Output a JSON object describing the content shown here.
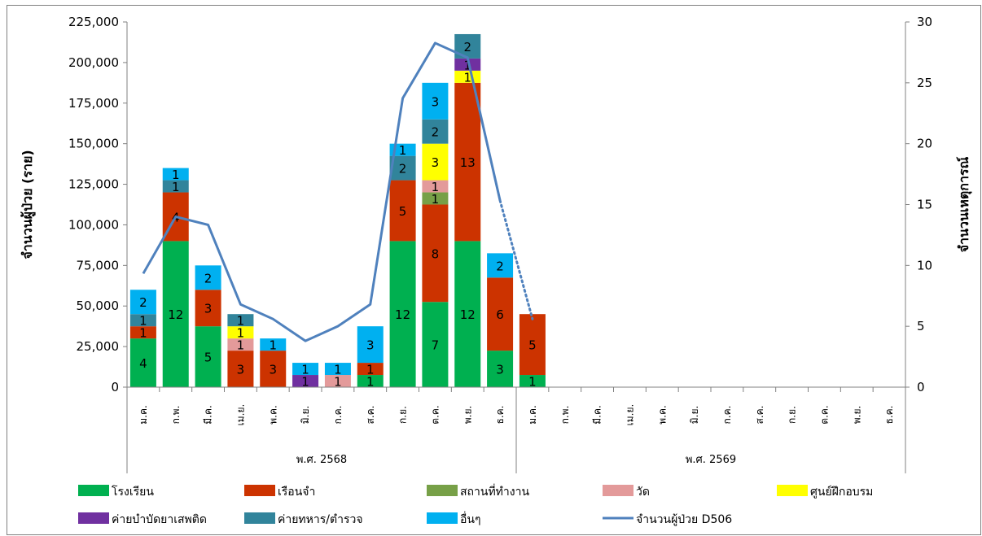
{
  "chart_data": {
    "type": "bar",
    "stacked": true,
    "y_left": {
      "title": "จำนวนผู้ป่วย (ราย)",
      "range": [
        0,
        225000
      ],
      "step": 25000,
      "tick_labels": [
        "0",
        "25,000",
        "50,000",
        "75,000",
        "100,000",
        "125,000",
        "150,000",
        "175,000",
        "200,000",
        "225,000"
      ]
    },
    "y_right": {
      "title": "จำนวนเหตุการณ์",
      "range": [
        0,
        30
      ],
      "step": 5,
      "tick_labels": [
        "0",
        "5",
        "10",
        "15",
        "20",
        "25",
        "30"
      ]
    },
    "groups": [
      {
        "label": "พ.ศ. 2568",
        "months": [
          "ม.ค.",
          "ก.พ.",
          "มี.ค.",
          "เม.ย.",
          "พ.ค.",
          "มิ.ย.",
          "ก.ค.",
          "ส.ค.",
          "ก.ย.",
          "ต.ค.",
          "พ.ย.",
          "ธ.ค."
        ]
      },
      {
        "label": "พ.ศ. 2569",
        "months": [
          "ม.ค.",
          "ก.พ.",
          "มี.ค.",
          "เม.ย.",
          "พ.ค.",
          "มิ.ย.",
          "ก.ค.",
          "ส.ค.",
          "ก.ย.",
          "ต.ค.",
          "พ.ย.",
          "ธ.ค."
        ]
      }
    ],
    "series": [
      {
        "name": "โรงเรียน",
        "color": "#00B050",
        "bar_values": [
          30000,
          90000,
          37500,
          0,
          0,
          0,
          0,
          7500,
          90000,
          52500,
          90000,
          22500,
          7500
        ],
        "event_counts": [
          4,
          12,
          5,
          null,
          null,
          null,
          null,
          1,
          12,
          7,
          12,
          3,
          1
        ]
      },
      {
        "name": "เรือนจำ",
        "color": "#CC3300",
        "bar_values": [
          7500,
          30000,
          22500,
          22500,
          22500,
          0,
          0,
          7500,
          37500,
          60000,
          97500,
          45000,
          37500
        ],
        "event_counts": [
          1,
          4,
          3,
          3,
          3,
          null,
          null,
          1,
          5,
          8,
          13,
          6,
          5
        ]
      },
      {
        "name": "สถานที่ทำงาน",
        "color": "#77A047",
        "bar_values": [
          0,
          0,
          0,
          0,
          0,
          0,
          0,
          0,
          0,
          7500,
          0,
          0,
          0
        ],
        "event_counts": [
          null,
          null,
          null,
          null,
          null,
          null,
          null,
          null,
          null,
          1,
          null,
          null,
          null
        ]
      },
      {
        "name": "วัด",
        "color": "#E39A9A",
        "bar_values": [
          0,
          0,
          0,
          7500,
          0,
          0,
          7500,
          0,
          0,
          7500,
          0,
          0,
          0
        ],
        "event_counts": [
          null,
          null,
          null,
          1,
          null,
          null,
          1,
          null,
          null,
          1,
          null,
          null,
          null
        ]
      },
      {
        "name": "ศูนย์ฝึกอบรม",
        "color": "#FFFF00",
        "bar_values": [
          0,
          0,
          0,
          7500,
          0,
          0,
          0,
          0,
          0,
          22500,
          7500,
          0,
          0
        ],
        "event_counts": [
          null,
          null,
          null,
          1,
          null,
          null,
          null,
          null,
          null,
          3,
          1,
          null,
          null
        ]
      },
      {
        "name": "ค่ายบำบัดยาเสพติด",
        "color": "#7030A0",
        "bar_values": [
          0,
          0,
          0,
          0,
          0,
          7500,
          0,
          0,
          0,
          0,
          7500,
          0,
          0
        ],
        "event_counts": [
          null,
          null,
          null,
          null,
          null,
          1,
          null,
          null,
          null,
          null,
          null,
          null,
          null
        ]
      },
      {
        "name": "ค่ายทหาร/ตำรวจ",
        "color": "#31849B",
        "bar_values": [
          7500,
          7500,
          0,
          7500,
          0,
          0,
          0,
          0,
          15000,
          15000,
          15000,
          0,
          0
        ],
        "event_counts": [
          1,
          1,
          null,
          1,
          null,
          null,
          null,
          null,
          2,
          2,
          2,
          null,
          null
        ]
      },
      {
        "name": "อื่นๆ",
        "color": "#00B0F0",
        "bar_values": [
          15000,
          7500,
          15000,
          0,
          7500,
          7500,
          7500,
          22500,
          7500,
          22500,
          0,
          15000,
          0
        ],
        "event_counts": [
          2,
          1,
          2,
          null,
          1,
          1,
          1,
          3,
          1,
          3,
          null,
          2,
          null
        ]
      }
    ],
    "extra_labels": [
      {
        "month_index": 10,
        "series": "ค่ายบำบัดยาเสพติด",
        "text": "1"
      }
    ],
    "line": {
      "name": "จำนวนผู้ป่วย D506",
      "color": "#4F81BD",
      "axis": "left",
      "values": [
        70000,
        105000,
        100000,
        51000,
        42000,
        28500,
        37500,
        51000,
        178000,
        212000,
        203000,
        115000,
        42000
      ],
      "dotted_from_index": 11
    },
    "legend": {
      "position": "bottom"
    },
    "grid": false
  }
}
